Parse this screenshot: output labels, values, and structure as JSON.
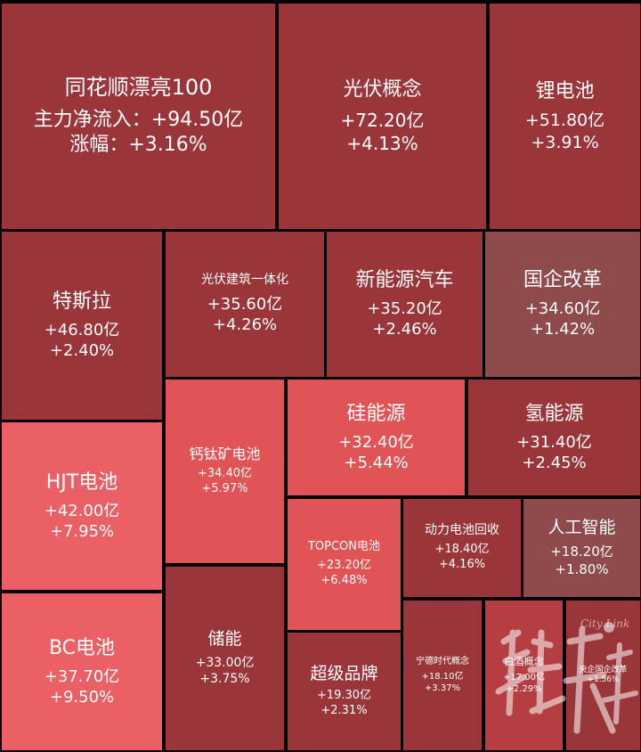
{
  "colors": {
    "background": "#000000",
    "deep_red": "#9a363a",
    "mid_red": "#b43e42",
    "bright_red": "#e05456",
    "light_red": "#ea6064",
    "muted_red": "#8f4a4c",
    "text": "#ffffff"
  },
  "chart_data": {
    "type": "treemap",
    "tiles": [
      {
        "name": "同花顺漂亮100",
        "inflow": "+94.50亿",
        "change": "+3.16%",
        "inflow_label": "主力净流入：",
        "change_label": "涨幅：",
        "inflow_value": 94.5,
        "change_value": 3.16,
        "color": "#9a363a"
      },
      {
        "name": "光伏概念",
        "inflow": "+72.20亿",
        "change": "+4.13%",
        "inflow_value": 72.2,
        "change_value": 4.13,
        "color": "#9a363a"
      },
      {
        "name": "锂电池",
        "inflow": "+51.80亿",
        "change": "+3.91%",
        "inflow_value": 51.8,
        "change_value": 3.91,
        "color": "#9a363a"
      },
      {
        "name": "特斯拉",
        "inflow": "+46.80亿",
        "change": "+2.40%",
        "inflow_value": 46.8,
        "change_value": 2.4,
        "color": "#9a363a"
      },
      {
        "name": "光伏建筑一体化",
        "inflow": "+35.60亿",
        "change": "+4.26%",
        "inflow_value": 35.6,
        "change_value": 4.26,
        "color": "#9a363a"
      },
      {
        "name": "新能源汽车",
        "inflow": "+35.20亿",
        "change": "+2.46%",
        "inflow_value": 35.2,
        "change_value": 2.46,
        "color": "#9a363a"
      },
      {
        "name": "国企改革",
        "inflow": "+34.60亿",
        "change": "+1.42%",
        "inflow_value": 34.6,
        "change_value": 1.42,
        "color": "#8f4a4c"
      },
      {
        "name": "HJT电池",
        "inflow": "+42.00亿",
        "change": "+7.95%",
        "inflow_value": 42.0,
        "change_value": 7.95,
        "color": "#ea6064"
      },
      {
        "name": "钙钛矿电池",
        "inflow": "+34.40亿",
        "change": "+5.97%",
        "inflow_value": 34.4,
        "change_value": 5.97,
        "color": "#e05456"
      },
      {
        "name": "硅能源",
        "inflow": "+32.40亿",
        "change": "+5.44%",
        "inflow_value": 32.4,
        "change_value": 5.44,
        "color": "#e05456"
      },
      {
        "name": "氢能源",
        "inflow": "+31.40亿",
        "change": "+2.45%",
        "inflow_value": 31.4,
        "change_value": 2.45,
        "color": "#9a363a"
      },
      {
        "name": "TOPCON电池",
        "inflow": "+23.20亿",
        "change": "+6.48%",
        "inflow_value": 23.2,
        "change_value": 6.48,
        "color": "#e05456"
      },
      {
        "name": "动力电池回收",
        "inflow": "+18.40亿",
        "change": "+4.16%",
        "inflow_value": 18.4,
        "change_value": 4.16,
        "color": "#9a363a"
      },
      {
        "name": "人工智能",
        "inflow": "+18.20亿",
        "change": "+1.80%",
        "inflow_value": 18.2,
        "change_value": 1.8,
        "color": "#8f4a4c"
      },
      {
        "name": "BC电池",
        "inflow": "+37.70亿",
        "change": "+9.50%",
        "inflow_value": 37.7,
        "change_value": 9.5,
        "color": "#ea6064"
      },
      {
        "name": "储能",
        "inflow": "+33.00亿",
        "change": "+3.75%",
        "inflow_value": 33.0,
        "change_value": 3.75,
        "color": "#9a363a"
      },
      {
        "name": "超级品牌",
        "inflow": "+19.30亿",
        "change": "+2.31%",
        "inflow_value": 19.3,
        "change_value": 2.31,
        "color": "#9a363a"
      },
      {
        "name": "宁德时代概念",
        "inflow": "+18.10亿",
        "change": "+3.37%",
        "inflow_value": 18.1,
        "change_value": 3.37,
        "color": "#9a363a"
      },
      {
        "name": "白酒概念",
        "inflow": "+17.00亿",
        "change": "+2.29%",
        "inflow_value": 17.0,
        "change_value": 2.29,
        "color": "#b43e42"
      },
      {
        "name": "央企国企改革",
        "inflow": "",
        "change": "+1.56%",
        "inflow_value": null,
        "change_value": 1.56,
        "color": "#9a363a"
      }
    ]
  },
  "watermark": {
    "logo_text": "City Link"
  }
}
